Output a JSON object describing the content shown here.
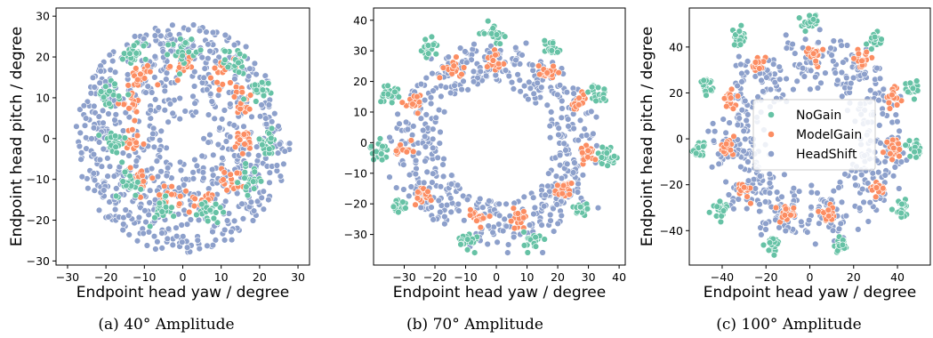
{
  "colors": {
    "NoGain": "#66c2a5",
    "ModelGain": "#fc8d62",
    "HeadShift": "#8da0cb"
  },
  "chart_data": [
    {
      "type": "scatter",
      "caption": "(a) 40° Amplitude",
      "xlabel": "Endpoint head yaw / degree",
      "ylabel": "Endpoint head pitch / degree",
      "xlim": [
        -33,
        33
      ],
      "ylim": [
        -31,
        32
      ],
      "xticks": [
        -30,
        -20,
        -10,
        0,
        10,
        20,
        30
      ],
      "yticks": [
        -30,
        -20,
        -10,
        0,
        10,
        20,
        30
      ],
      "grid": false,
      "amplitude": 40,
      "series": [
        {
          "name": "NoGain",
          "clusters": [
            [
              -19,
              11
            ],
            [
              -12,
              21
            ],
            [
              0,
              22
            ],
            [
              14,
              19
            ],
            [
              19,
              11
            ],
            [
              -18,
              -1
            ],
            [
              22,
              -1
            ],
            [
              -14,
              -11
            ],
            [
              18,
              -10
            ],
            [
              -6,
              -18
            ],
            [
              7,
              -18
            ]
          ]
        },
        {
          "name": "ModelGain",
          "clusters": [
            [
              -14,
              9
            ],
            [
              -11,
              15
            ],
            [
              0,
              18
            ],
            [
              11,
              16
            ],
            [
              16,
              9
            ],
            [
              -13,
              -1
            ],
            [
              16,
              -1
            ],
            [
              -11,
              -10
            ],
            [
              13,
              -10
            ],
            [
              -4,
              -15
            ],
            [
              5,
              -15
            ]
          ]
        },
        {
          "name": "HeadShift",
          "description": "spread between r≈5 and r≈28 degrees"
        }
      ]
    },
    {
      "type": "scatter",
      "caption": "(b) 70° Amplitude",
      "xlabel": "Endpoint head yaw / degree",
      "ylabel": "",
      "xlim": [
        -40,
        42
      ],
      "ylim": [
        -40,
        44
      ],
      "xticks": [
        -30,
        -20,
        -10,
        0,
        10,
        20,
        30,
        40
      ],
      "yticks": [
        -30,
        -20,
        -10,
        0,
        10,
        20,
        30,
        40
      ],
      "grid": false,
      "amplitude": 70,
      "series": [
        {
          "name": "NoGain",
          "clusters": [
            [
              -35,
              16
            ],
            [
              -22,
              31
            ],
            [
              -1,
              36
            ],
            [
              18,
              31
            ],
            [
              33,
              16
            ],
            [
              -38,
              -3
            ],
            [
              36,
              -4
            ],
            [
              -32,
              -21
            ],
            [
              28,
              -22
            ],
            [
              -9,
              -32
            ],
            [
              12,
              -32
            ]
          ]
        },
        {
          "name": "ModelGain",
          "clusters": [
            [
              -27,
              13
            ],
            [
              -14,
              24
            ],
            [
              0,
              27
            ],
            [
              16,
              23
            ],
            [
              27,
              13
            ],
            [
              -30,
              -3
            ],
            [
              30,
              -3
            ],
            [
              -24,
              -17
            ],
            [
              22,
              -16
            ],
            [
              -6,
              -24
            ],
            [
              7,
              -25
            ]
          ]
        },
        {
          "name": "HeadShift",
          "description": "ring between r≈17 and r≈34 degrees"
        }
      ]
    },
    {
      "type": "scatter",
      "caption": "(c) 100° Amplitude",
      "xlabel": "Endpoint head yaw / degree",
      "ylabel": "Endpoint head pitch / degree",
      "xlim": [
        -55,
        55
      ],
      "ylim": [
        -55,
        57
      ],
      "xticks": [
        -40,
        -20,
        0,
        20,
        40
      ],
      "yticks": [
        -40,
        -20,
        0,
        20,
        40
      ],
      "grid": false,
      "amplitude": 100,
      "legend": {
        "placement": "center",
        "entries": [
          "NoGain",
          "ModelGain",
          "HeadShift"
        ]
      },
      "series": [
        {
          "name": "NoGain",
          "clusters": [
            [
              -47,
              22
            ],
            [
              -32,
              44
            ],
            [
              0,
              51
            ],
            [
              30,
              43
            ],
            [
              47,
              22
            ],
            [
              -50,
              -5
            ],
            [
              49,
              -5
            ],
            [
              -41,
              -30
            ],
            [
              42,
              -31
            ],
            [
              -17,
              -46
            ],
            [
              14,
              -46
            ]
          ]
        },
        {
          "name": "ModelGain",
          "clusters": [
            [
              -36,
              17
            ],
            [
              -24,
              32
            ],
            [
              2,
              37
            ],
            [
              24,
              35
            ],
            [
              38,
              18
            ],
            [
              -38,
              -4
            ],
            [
              38,
              -4
            ],
            [
              -30,
              -22
            ],
            [
              31,
              -22
            ],
            [
              -10,
              -33
            ],
            [
              8,
              -33
            ]
          ]
        },
        {
          "name": "HeadShift",
          "description": "dense groups along ring r≈25-48 degrees"
        }
      ]
    }
  ]
}
